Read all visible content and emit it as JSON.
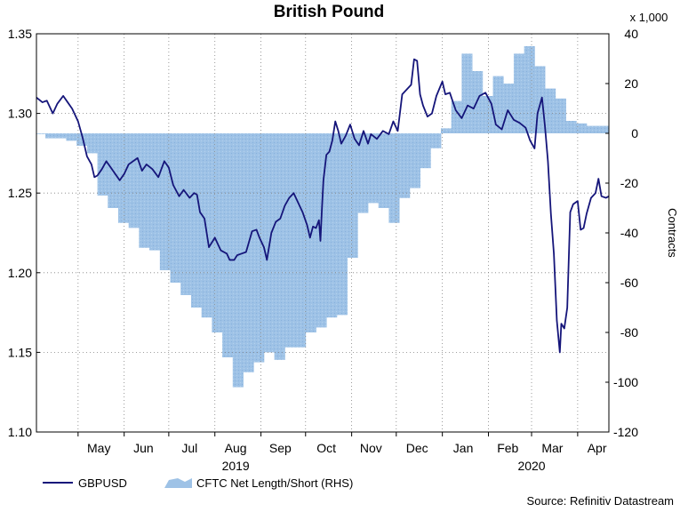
{
  "chart_data": {
    "type": "line+area",
    "title": "British Pound",
    "y_left_ticks": [
      "1.35",
      "1.30",
      "1.25",
      "1.20",
      "1.15",
      "1.10"
    ],
    "y_right_ticks": [
      "40",
      "20",
      "0",
      "-20",
      "-40",
      "-60",
      "-80",
      "-100",
      "-120"
    ],
    "y_right_units": "x 1,000",
    "y_right_label": "Contracts",
    "y_left_range": [
      1.1,
      1.35
    ],
    "y_right_range": [
      -120,
      40
    ],
    "x_range": [
      "2019-04-03",
      "2020-04-22"
    ],
    "month_labels": [
      {
        "label": "May",
        "date": "2019-05-15"
      },
      {
        "label": "Jun",
        "date": "2019-06-14"
      },
      {
        "label": "Jul",
        "date": "2019-07-15"
      },
      {
        "label": "Aug",
        "date": "2019-08-15"
      },
      {
        "label": "Sep",
        "date": "2019-09-14"
      },
      {
        "label": "Oct",
        "date": "2019-10-15"
      },
      {
        "label": "Nov",
        "date": "2019-11-14"
      },
      {
        "label": "Dec",
        "date": "2019-12-15"
      },
      {
        "label": "Jan",
        "date": "2020-01-15"
      },
      {
        "label": "Feb",
        "date": "2020-02-14"
      },
      {
        "label": "Mar",
        "date": "2020-03-15"
      },
      {
        "label": "Apr",
        "date": "2020-04-14"
      }
    ],
    "month_boundaries": [
      "2019-05-01",
      "2019-06-01",
      "2019-07-01",
      "2019-08-01",
      "2019-09-01",
      "2019-10-01",
      "2019-11-01",
      "2019-12-01",
      "2020-01-01",
      "2020-02-01",
      "2020-03-01",
      "2020-04-01"
    ],
    "year_labels": [
      {
        "label": "2019",
        "date": "2019-08-15"
      },
      {
        "label": "2020",
        "date": "2020-03-01"
      }
    ],
    "gridlines": true,
    "legend_position": "bottom-left",
    "colors": {
      "gbpusd": "#15157a",
      "cftc": "#9ec2e6",
      "grid": "#808080"
    },
    "series": [
      {
        "name": "GBPUSD",
        "axis": "left",
        "style": "line",
        "points": [
          [
            "2019-04-03",
            1.31
          ],
          [
            "2019-04-07",
            1.307
          ],
          [
            "2019-04-10",
            1.308
          ],
          [
            "2019-04-14",
            1.3
          ],
          [
            "2019-04-17",
            1.306
          ],
          [
            "2019-04-21",
            1.311
          ],
          [
            "2019-04-24",
            1.307
          ],
          [
            "2019-04-27",
            1.303
          ],
          [
            "2019-05-01",
            1.295
          ],
          [
            "2019-05-04",
            1.285
          ],
          [
            "2019-05-07",
            1.273
          ],
          [
            "2019-05-10",
            1.268
          ],
          [
            "2019-05-12",
            1.26
          ],
          [
            "2019-05-14",
            1.261
          ],
          [
            "2019-05-17",
            1.265
          ],
          [
            "2019-05-20",
            1.27
          ],
          [
            "2019-05-23",
            1.266
          ],
          [
            "2019-05-26",
            1.262
          ],
          [
            "2019-05-29",
            1.258
          ],
          [
            "2019-06-01",
            1.262
          ],
          [
            "2019-06-04",
            1.268
          ],
          [
            "2019-06-07",
            1.27
          ],
          [
            "2019-06-10",
            1.272
          ],
          [
            "2019-06-13",
            1.264
          ],
          [
            "2019-06-16",
            1.268
          ],
          [
            "2019-06-20",
            1.265
          ],
          [
            "2019-06-24",
            1.26
          ],
          [
            "2019-06-28",
            1.27
          ],
          [
            "2019-07-01",
            1.266
          ],
          [
            "2019-07-04",
            1.255
          ],
          [
            "2019-07-08",
            1.248
          ],
          [
            "2019-07-11",
            1.252
          ],
          [
            "2019-07-15",
            1.247
          ],
          [
            "2019-07-18",
            1.25
          ],
          [
            "2019-07-20",
            1.249
          ],
          [
            "2019-07-22",
            1.238
          ],
          [
            "2019-07-25",
            1.234
          ],
          [
            "2019-07-28",
            1.216
          ],
          [
            "2019-08-01",
            1.222
          ],
          [
            "2019-08-05",
            1.214
          ],
          [
            "2019-08-09",
            1.212
          ],
          [
            "2019-08-11",
            1.208
          ],
          [
            "2019-08-14",
            1.208
          ],
          [
            "2019-08-16",
            1.211
          ],
          [
            "2019-08-19",
            1.212
          ],
          [
            "2019-08-22",
            1.213
          ],
          [
            "2019-08-26",
            1.226
          ],
          [
            "2019-08-29",
            1.227
          ],
          [
            "2019-08-31",
            1.222
          ],
          [
            "2019-09-03",
            1.216
          ],
          [
            "2019-09-05",
            1.208
          ],
          [
            "2019-09-08",
            1.225
          ],
          [
            "2019-09-11",
            1.232
          ],
          [
            "2019-09-14",
            1.234
          ],
          [
            "2019-09-17",
            1.242
          ],
          [
            "2019-09-20",
            1.247
          ],
          [
            "2019-09-23",
            1.25
          ],
          [
            "2019-09-26",
            1.244
          ],
          [
            "2019-09-29",
            1.238
          ],
          [
            "2019-10-02",
            1.23
          ],
          [
            "2019-10-04",
            1.222
          ],
          [
            "2019-10-06",
            1.229
          ],
          [
            "2019-10-08",
            1.228
          ],
          [
            "2019-10-10",
            1.233
          ],
          [
            "2019-10-11",
            1.22
          ],
          [
            "2019-10-12",
            1.24
          ],
          [
            "2019-10-13",
            1.258
          ],
          [
            "2019-10-15",
            1.274
          ],
          [
            "2019-10-17",
            1.276
          ],
          [
            "2019-10-19",
            1.283
          ],
          [
            "2019-10-21",
            1.295
          ],
          [
            "2019-10-23",
            1.289
          ],
          [
            "2019-10-25",
            1.281
          ],
          [
            "2019-10-28",
            1.286
          ],
          [
            "2019-10-31",
            1.293
          ],
          [
            "2019-11-03",
            1.284
          ],
          [
            "2019-11-06",
            1.28
          ],
          [
            "2019-11-09",
            1.289
          ],
          [
            "2019-11-12",
            1.281
          ],
          [
            "2019-11-14",
            1.287
          ],
          [
            "2019-11-18",
            1.284
          ],
          [
            "2019-11-22",
            1.289
          ],
          [
            "2019-11-26",
            1.287
          ],
          [
            "2019-11-29",
            1.295
          ],
          [
            "2019-12-02",
            1.289
          ],
          [
            "2019-12-05",
            1.312
          ],
          [
            "2019-12-08",
            1.315
          ],
          [
            "2019-12-11",
            1.318
          ],
          [
            "2019-12-13",
            1.334
          ],
          [
            "2019-12-15",
            1.333
          ],
          [
            "2019-12-17",
            1.312
          ],
          [
            "2019-12-19",
            1.305
          ],
          [
            "2019-12-22",
            1.298
          ],
          [
            "2019-12-25",
            1.3
          ],
          [
            "2019-12-28",
            1.311
          ],
          [
            "2020-01-01",
            1.32
          ],
          [
            "2020-01-03",
            1.312
          ],
          [
            "2020-01-06",
            1.313
          ],
          [
            "2020-01-10",
            1.302
          ],
          [
            "2020-01-14",
            1.297
          ],
          [
            "2020-01-18",
            1.305
          ],
          [
            "2020-01-22",
            1.303
          ],
          [
            "2020-01-26",
            1.311
          ],
          [
            "2020-01-30",
            1.313
          ],
          [
            "2020-02-03",
            1.306
          ],
          [
            "2020-02-06",
            1.293
          ],
          [
            "2020-02-10",
            1.29
          ],
          [
            "2020-02-14",
            1.302
          ],
          [
            "2020-02-18",
            1.296
          ],
          [
            "2020-02-22",
            1.294
          ],
          [
            "2020-02-26",
            1.291
          ],
          [
            "2020-02-29",
            1.283
          ],
          [
            "2020-03-03",
            1.278
          ],
          [
            "2020-03-05",
            1.3
          ],
          [
            "2020-03-08",
            1.31
          ],
          [
            "2020-03-10",
            1.292
          ],
          [
            "2020-03-12",
            1.27
          ],
          [
            "2020-03-14",
            1.237
          ],
          [
            "2020-03-16",
            1.212
          ],
          [
            "2020-03-18",
            1.17
          ],
          [
            "2020-03-20",
            1.15
          ],
          [
            "2020-03-21",
            1.168
          ],
          [
            "2020-03-23",
            1.165
          ],
          [
            "2020-03-25",
            1.178
          ],
          [
            "2020-03-27",
            1.238
          ],
          [
            "2020-03-29",
            1.243
          ],
          [
            "2020-04-01",
            1.245
          ],
          [
            "2020-04-03",
            1.227
          ],
          [
            "2020-04-05",
            1.228
          ],
          [
            "2020-04-07",
            1.237
          ],
          [
            "2020-04-10",
            1.247
          ],
          [
            "2020-04-13",
            1.25
          ],
          [
            "2020-04-15",
            1.259
          ],
          [
            "2020-04-17",
            1.248
          ],
          [
            "2020-04-20",
            1.247
          ],
          [
            "2020-04-22",
            1.248
          ]
        ]
      },
      {
        "name": "CFTC Net Length/Short (RHS)",
        "axis": "right",
        "style": "area-step",
        "points": [
          [
            "2019-04-03",
            0
          ],
          [
            "2019-04-09",
            -2
          ],
          [
            "2019-04-16",
            -2
          ],
          [
            "2019-04-23",
            -3
          ],
          [
            "2019-04-30",
            -5
          ],
          [
            "2019-05-07",
            -8
          ],
          [
            "2019-05-14",
            -25
          ],
          [
            "2019-05-21",
            -30
          ],
          [
            "2019-05-28",
            -36
          ],
          [
            "2019-06-04",
            -38
          ],
          [
            "2019-06-11",
            -46
          ],
          [
            "2019-06-18",
            -47
          ],
          [
            "2019-06-25",
            -55
          ],
          [
            "2019-07-02",
            -60
          ],
          [
            "2019-07-09",
            -65
          ],
          [
            "2019-07-16",
            -70
          ],
          [
            "2019-07-23",
            -74
          ],
          [
            "2019-07-30",
            -80
          ],
          [
            "2019-08-06",
            -90
          ],
          [
            "2019-08-13",
            -102
          ],
          [
            "2019-08-20",
            -96
          ],
          [
            "2019-08-27",
            -92
          ],
          [
            "2019-09-03",
            -88
          ],
          [
            "2019-09-10",
            -91
          ],
          [
            "2019-09-17",
            -86
          ],
          [
            "2019-09-24",
            -86
          ],
          [
            "2019-10-01",
            -80
          ],
          [
            "2019-10-08",
            -78
          ],
          [
            "2019-10-15",
            -74
          ],
          [
            "2019-10-22",
            -73
          ],
          [
            "2019-10-29",
            -50
          ],
          [
            "2019-11-05",
            -32
          ],
          [
            "2019-11-12",
            -28
          ],
          [
            "2019-11-19",
            -30
          ],
          [
            "2019-11-26",
            -36
          ],
          [
            "2019-12-03",
            -26
          ],
          [
            "2019-12-10",
            -22
          ],
          [
            "2019-12-17",
            -14
          ],
          [
            "2019-12-24",
            -6
          ],
          [
            "2019-12-31",
            2
          ],
          [
            "2020-01-07",
            13
          ],
          [
            "2020-01-14",
            32
          ],
          [
            "2020-01-21",
            25
          ],
          [
            "2020-01-28",
            15
          ],
          [
            "2020-02-04",
            23
          ],
          [
            "2020-02-11",
            20
          ],
          [
            "2020-02-18",
            32
          ],
          [
            "2020-02-25",
            35
          ],
          [
            "2020-03-03",
            27
          ],
          [
            "2020-03-10",
            18
          ],
          [
            "2020-03-17",
            14
          ],
          [
            "2020-03-24",
            5
          ],
          [
            "2020-03-31",
            4
          ],
          [
            "2020-04-07",
            3
          ],
          [
            "2020-04-14",
            3
          ],
          [
            "2020-04-22",
            3
          ]
        ]
      }
    ]
  },
  "source_text": "Source: Refinitiv Datastream"
}
